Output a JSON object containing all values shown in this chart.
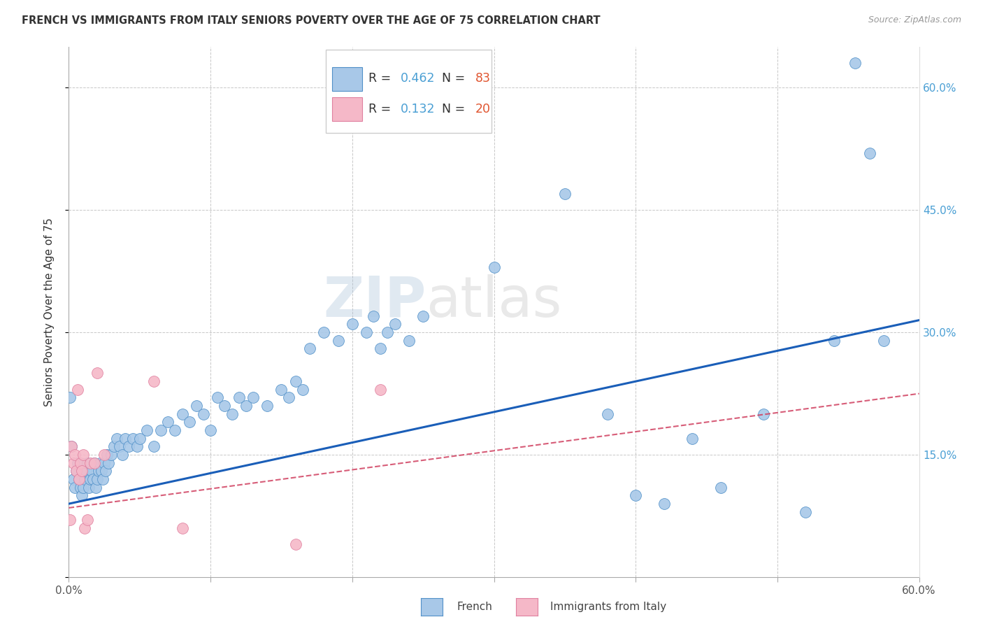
{
  "title": "FRENCH VS IMMIGRANTS FROM ITALY SENIORS POVERTY OVER THE AGE OF 75 CORRELATION CHART",
  "source": "Source: ZipAtlas.com",
  "ylabel": "Seniors Poverty Over the Age of 75",
  "x_min": 0.0,
  "x_max": 0.6,
  "y_min": 0.0,
  "y_max": 0.65,
  "french_R": 0.462,
  "french_N": 83,
  "italy_R": 0.132,
  "italy_N": 20,
  "french_color": "#a8c8e8",
  "french_edge_color": "#5090c8",
  "french_line_color": "#1a5eb8",
  "italy_color": "#f5b8c8",
  "italy_edge_color": "#e080a0",
  "italy_line_color": "#d04060",
  "watermark_color": "#c8daea",
  "french_line_y0": 0.09,
  "french_line_y1": 0.315,
  "italy_line_y0": 0.085,
  "italy_line_y1": 0.225,
  "french_x": [
    0.001,
    0.002,
    0.003,
    0.004,
    0.005,
    0.006,
    0.007,
    0.008,
    0.009,
    0.01,
    0.011,
    0.012,
    0.013,
    0.014,
    0.015,
    0.016,
    0.017,
    0.018,
    0.019,
    0.02,
    0.021,
    0.022,
    0.023,
    0.024,
    0.025,
    0.026,
    0.027,
    0.028,
    0.03,
    0.032,
    0.034,
    0.036,
    0.038,
    0.04,
    0.042,
    0.045,
    0.048,
    0.05,
    0.055,
    0.06,
    0.065,
    0.07,
    0.075,
    0.08,
    0.085,
    0.09,
    0.095,
    0.1,
    0.105,
    0.11,
    0.115,
    0.12,
    0.125,
    0.13,
    0.14,
    0.15,
    0.155,
    0.16,
    0.165,
    0.17,
    0.18,
    0.19,
    0.2,
    0.21,
    0.215,
    0.22,
    0.225,
    0.23,
    0.24,
    0.25,
    0.3,
    0.35,
    0.38,
    0.4,
    0.42,
    0.44,
    0.46,
    0.49,
    0.52,
    0.54,
    0.555,
    0.565,
    0.575
  ],
  "french_y": [
    0.22,
    0.16,
    0.12,
    0.11,
    0.13,
    0.14,
    0.12,
    0.11,
    0.1,
    0.11,
    0.12,
    0.13,
    0.14,
    0.11,
    0.12,
    0.13,
    0.12,
    0.14,
    0.11,
    0.12,
    0.13,
    0.14,
    0.13,
    0.12,
    0.14,
    0.13,
    0.15,
    0.14,
    0.15,
    0.16,
    0.17,
    0.16,
    0.15,
    0.17,
    0.16,
    0.17,
    0.16,
    0.17,
    0.18,
    0.16,
    0.18,
    0.19,
    0.18,
    0.2,
    0.19,
    0.21,
    0.2,
    0.18,
    0.22,
    0.21,
    0.2,
    0.22,
    0.21,
    0.22,
    0.21,
    0.23,
    0.22,
    0.24,
    0.23,
    0.28,
    0.3,
    0.29,
    0.31,
    0.3,
    0.32,
    0.28,
    0.3,
    0.31,
    0.29,
    0.32,
    0.38,
    0.47,
    0.2,
    0.1,
    0.09,
    0.17,
    0.11,
    0.2,
    0.08,
    0.29,
    0.63,
    0.52,
    0.29
  ],
  "italy_x": [
    0.001,
    0.002,
    0.003,
    0.004,
    0.005,
    0.006,
    0.007,
    0.008,
    0.009,
    0.01,
    0.011,
    0.013,
    0.015,
    0.018,
    0.02,
    0.025,
    0.06,
    0.08,
    0.16,
    0.22
  ],
  "italy_y": [
    0.07,
    0.16,
    0.14,
    0.15,
    0.13,
    0.23,
    0.12,
    0.14,
    0.13,
    0.15,
    0.06,
    0.07,
    0.14,
    0.14,
    0.25,
    0.15,
    0.24,
    0.06,
    0.04,
    0.23
  ]
}
